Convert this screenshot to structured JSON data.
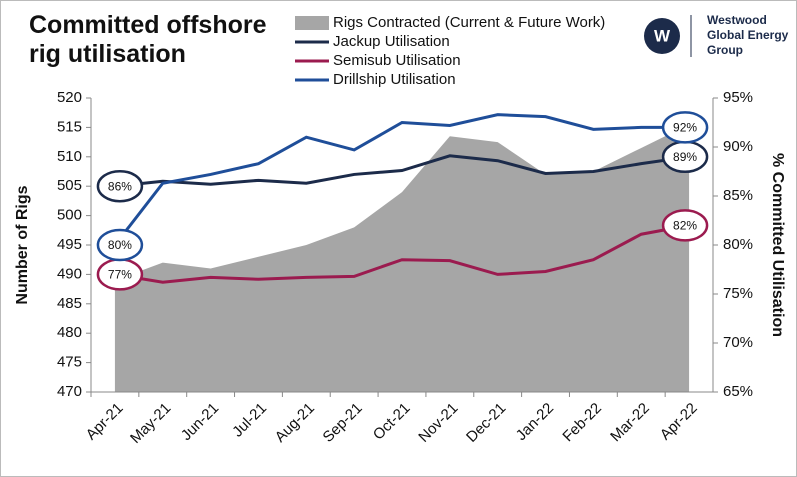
{
  "chart_data": {
    "type": "area-line",
    "title": "Committed offshore rig utilisation",
    "ylabel": "Number of Rigs",
    "y2label": "% Committed Utilisation",
    "logo": {
      "mark": "W",
      "lines": [
        "Westwood",
        "Global Energy",
        "Group"
      ]
    },
    "categories": [
      "Apr-21",
      "May-21",
      "Jun-21",
      "Jul-21",
      "Aug-21",
      "Sep-21",
      "Oct-21",
      "Nov-21",
      "Dec-21",
      "Jan-22",
      "Feb-22",
      "Mar-22",
      "Apr-22"
    ],
    "ylim": [
      470,
      520
    ],
    "yticks": [
      470,
      475,
      480,
      485,
      490,
      495,
      500,
      505,
      510,
      515,
      520
    ],
    "y2lim": [
      65,
      95
    ],
    "y2ticks": [
      {
        "value": 65,
        "label": "65%"
      },
      {
        "value": 70,
        "label": "70%"
      },
      {
        "value": 75,
        "label": "75%"
      },
      {
        "value": 80,
        "label": "80%"
      },
      {
        "value": 85,
        "label": "85%"
      },
      {
        "value": 90,
        "label": "90%"
      },
      {
        "value": 95,
        "label": "95%"
      }
    ],
    "series": [
      {
        "name": "Rigs Contracted (Current & Future Work)",
        "kind": "area",
        "color": "#a6a6a6",
        "values": [
          489,
          492,
          491,
          493,
          495,
          498,
          504,
          513.5,
          512.5,
          507,
          507.5,
          511.5,
          515.5
        ]
      },
      {
        "name": "Jackup Utilisation",
        "kind": "line",
        "axis": "y2",
        "color": "#1c2b4a",
        "values": [
          86,
          86.5,
          86.2,
          86.6,
          86.3,
          87.2,
          87.6,
          89.1,
          88.6,
          87.3,
          87.5,
          88.3,
          89
        ],
        "value_labels": [
          "86%",
          null,
          null,
          null,
          null,
          null,
          null,
          null,
          null,
          null,
          null,
          null,
          "89%"
        ]
      },
      {
        "name": "Semisub Utilisation",
        "kind": "line",
        "axis": "y2",
        "color": "#9b1b4f",
        "values": [
          77,
          76.2,
          76.7,
          76.5,
          76.7,
          76.8,
          78.5,
          78.4,
          77,
          77.3,
          78.5,
          81.1,
          82
        ],
        "value_labels": [
          "77%",
          null,
          null,
          null,
          null,
          null,
          null,
          null,
          null,
          null,
          null,
          null,
          "82%"
        ]
      },
      {
        "name": "Drillship Utilisation",
        "kind": "line",
        "axis": "y2",
        "color": "#1f4e99",
        "values": [
          80,
          86.3,
          87.2,
          88.3,
          91,
          89.7,
          92.5,
          92.2,
          93.3,
          93.1,
          91.8,
          92,
          92
        ],
        "value_labels": [
          "80%",
          null,
          null,
          null,
          null,
          null,
          null,
          null,
          null,
          null,
          null,
          null,
          "92%"
        ]
      }
    ]
  }
}
